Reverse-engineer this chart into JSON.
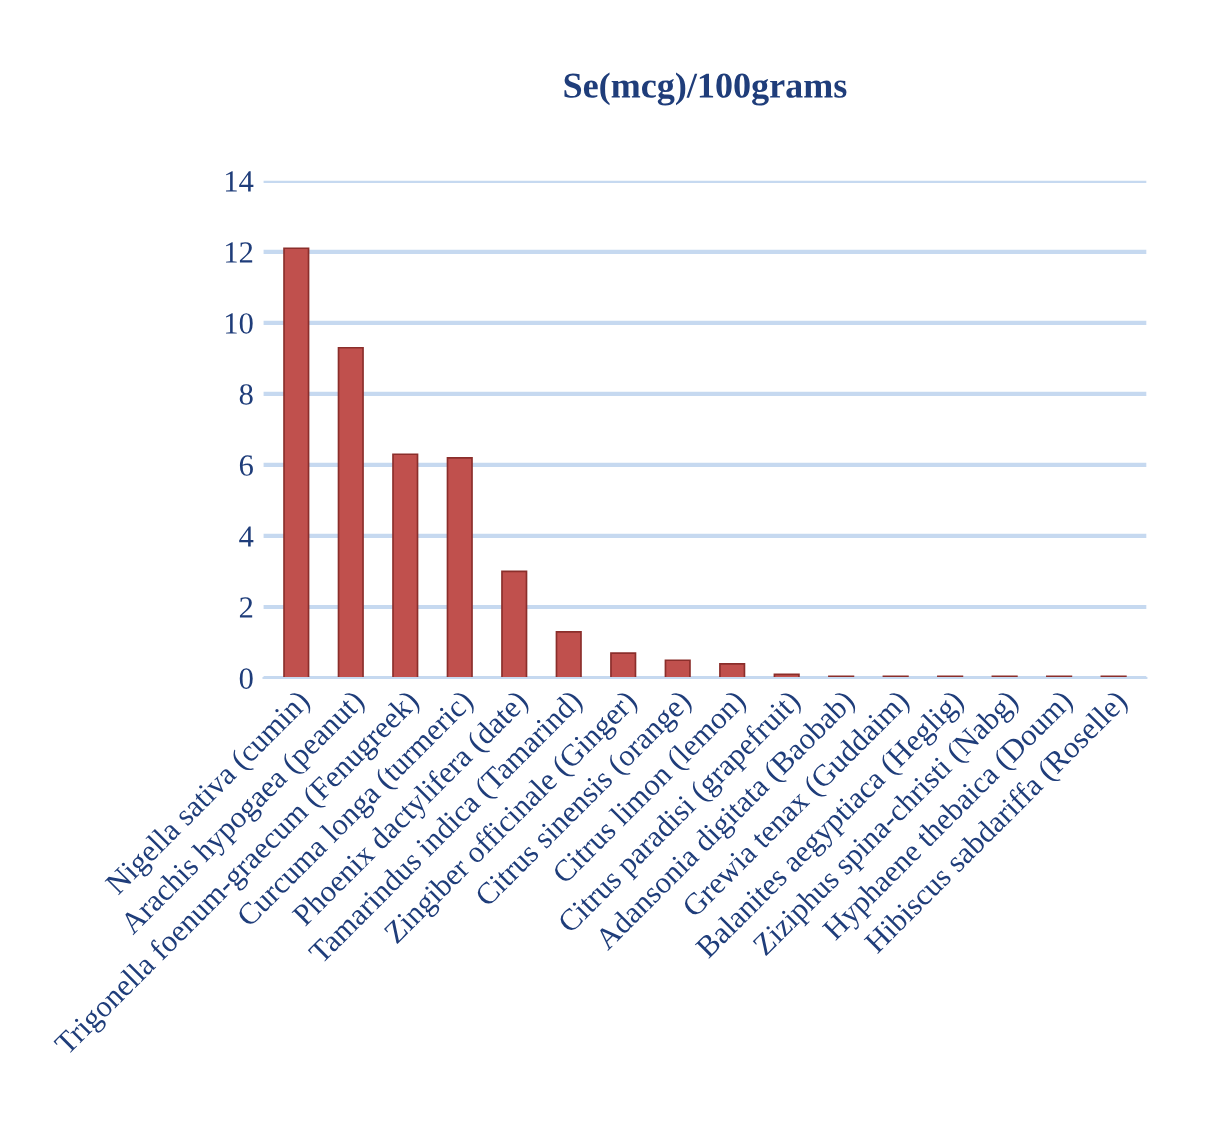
{
  "chart_data": {
    "type": "bar",
    "title": "Se(mcg)/100grams",
    "categories": [
      "Nigella sativa (cumin)",
      "Arachis hypogaea (peanut)",
      "Trigonella foenum-graecum (Fenugreek)",
      "Curcuma longa (turmeric)",
      "Phoenix dactylifera (date)",
      "Tamarindus indica (Tamarind)",
      "Zingiber officinale (Ginger)",
      "Citrus sinensis (orange)",
      "Citrus limon (lemon)",
      "Citrus paradisi (grapefruit)",
      "Adansonia digitata (Baobab)",
      "Grewia tenax (Guddaim)",
      "Balanites aegyptiaca (Heglig)",
      "Ziziphus spina-christi (Nabg)",
      "Hyphaene thebaica (Doum)",
      "Hibiscus sabdariffa (Roselle)"
    ],
    "values": [
      12.1,
      9.3,
      6.3,
      6.2,
      3.0,
      1.3,
      0.7,
      0.5,
      0.4,
      0.1,
      0.05,
      0.05,
      0.05,
      0.05,
      0.05,
      0.05
    ],
    "color": "#c0504d",
    "ylim": [
      0,
      14
    ],
    "yticks": [
      0,
      2,
      4,
      6,
      8,
      10,
      12,
      14
    ],
    "grid": "y"
  }
}
